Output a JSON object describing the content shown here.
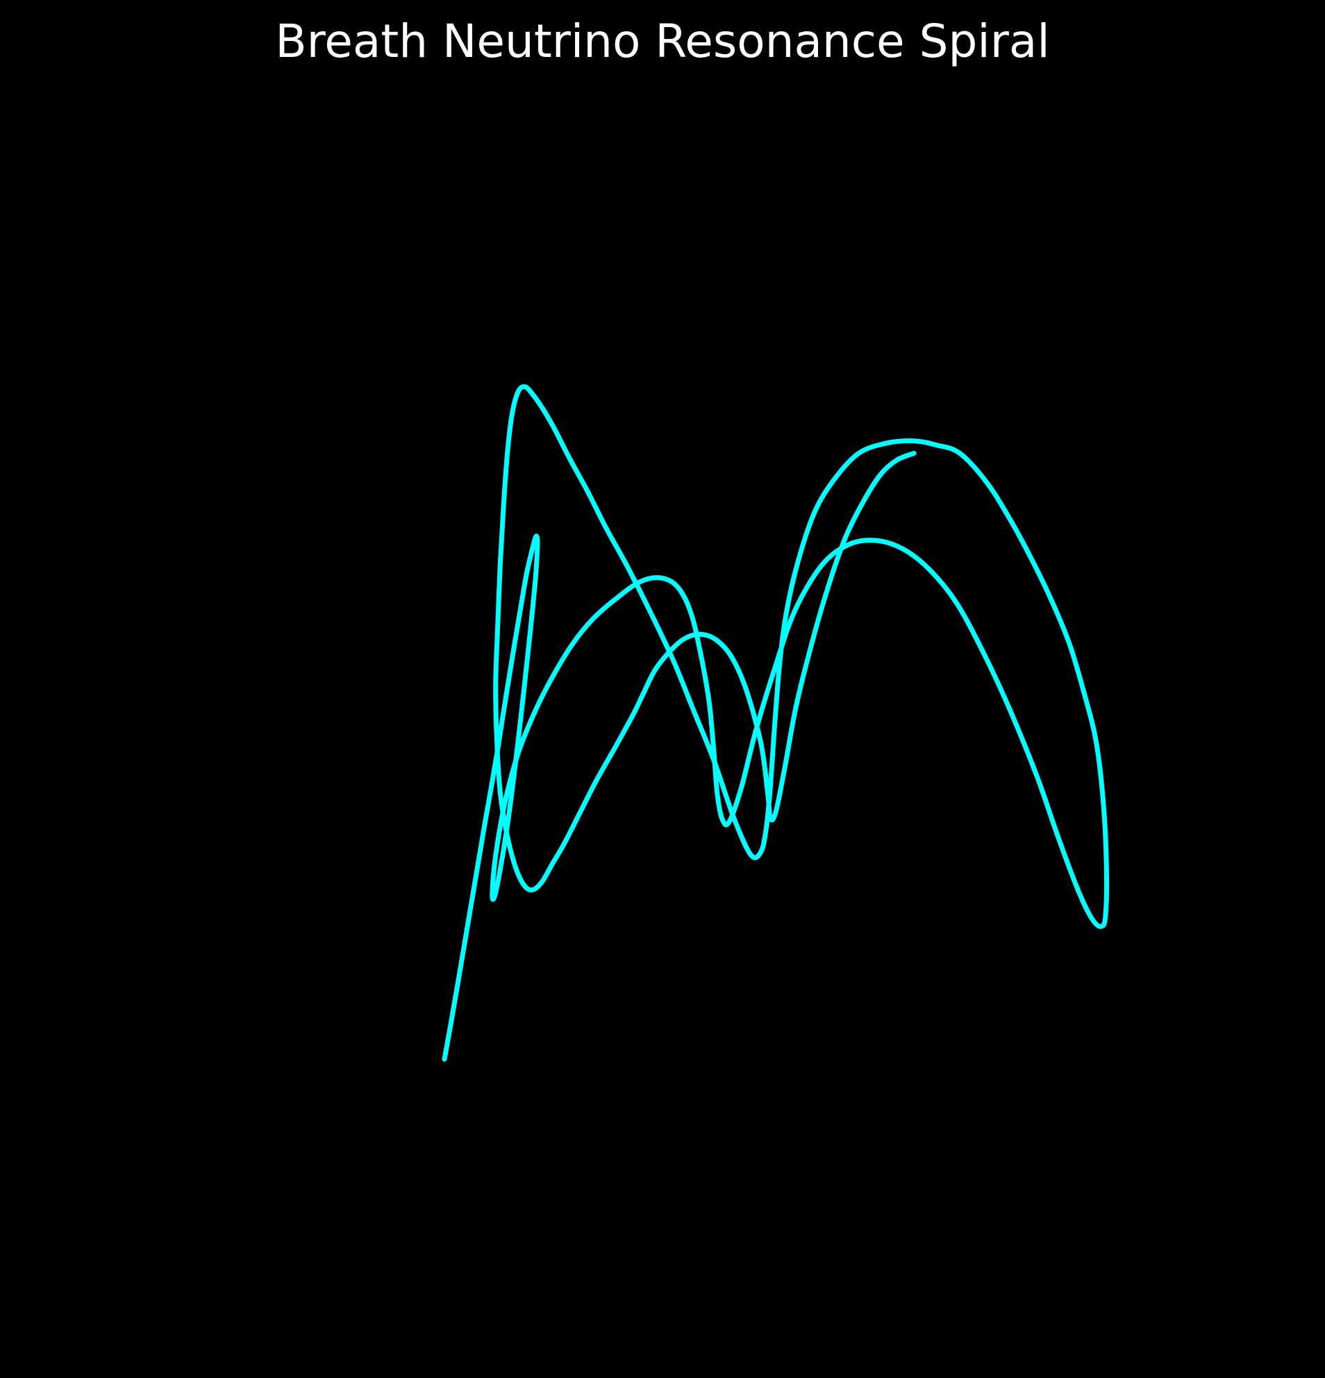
{
  "chart_data": {
    "type": "line",
    "title": "Breath Neutrino Resonance Spiral",
    "xlabel": "",
    "ylabel": "",
    "axes_visible": false,
    "grid": false,
    "background_color": "#000000",
    "series": [
      {
        "color": "#00ffff",
        "note_free_points": true,
        "x": [
          0.0,
          0.01,
          0.02,
          0.03,
          0.04,
          0.05,
          0.06,
          0.07,
          0.08,
          0.088,
          0.096,
          0.104,
          0.114,
          0.122,
          0.13,
          0.136,
          0.138,
          0.135,
          0.128,
          0.118,
          0.106,
          0.094,
          0.082,
          0.074,
          0.071,
          0.076,
          0.09,
          0.11,
          0.135,
          0.16,
          0.19,
          0.22,
          0.255,
          0.29,
          0.32,
          0.345,
          0.365,
          0.38,
          0.393,
          0.4,
          0.405,
          0.412,
          0.422,
          0.44,
          0.462,
          0.49,
          0.52,
          0.56,
          0.6,
          0.64,
          0.68,
          0.72,
          0.76,
          0.8,
          0.84,
          0.88,
          0.91,
          0.935,
          0.952,
          0.965,
          0.975,
          0.981,
          0.983,
          0.979,
          0.968,
          0.95,
          0.928,
          0.9,
          0.87,
          0.84,
          0.805,
          0.765,
          0.73,
          0.695,
          0.655,
          0.615,
          0.58,
          0.55,
          0.525,
          0.508,
          0.498,
          0.49,
          0.484,
          0.478,
          0.47,
          0.455,
          0.43,
          0.4,
          0.37,
          0.34,
          0.305,
          0.272,
          0.24,
          0.212,
          0.185,
          0.163,
          0.145,
          0.132,
          0.12,
          0.11,
          0.101,
          0.094,
          0.088,
          0.083,
          0.079,
          0.076,
          0.078,
          0.083,
          0.093,
          0.104,
          0.114,
          0.124,
          0.134,
          0.146,
          0.16,
          0.178,
          0.2,
          0.225,
          0.255,
          0.28,
          0.295,
          0.312,
          0.333,
          0.355,
          0.378,
          0.402,
          0.426,
          0.448,
          0.47,
          0.48,
          0.484,
          0.492,
          0.505,
          0.522,
          0.545,
          0.57,
          0.595,
          0.622,
          0.648,
          0.672,
          0.697
        ],
        "y": [
          0.0,
          0.045,
          0.092,
          0.14,
          0.188,
          0.236,
          0.284,
          0.33,
          0.378,
          0.42,
          0.46,
          0.5,
          0.548,
          0.585,
          0.613,
          0.63,
          0.62,
          0.578,
          0.52,
          0.445,
          0.36,
          0.285,
          0.225,
          0.195,
          0.2,
          0.245,
          0.31,
          0.37,
          0.42,
          0.46,
          0.5,
          0.53,
          0.555,
          0.575,
          0.58,
          0.57,
          0.54,
          0.49,
          0.43,
          0.37,
          0.32,
          0.29,
          0.285,
          0.325,
          0.395,
          0.47,
          0.54,
          0.595,
          0.62,
          0.625,
          0.615,
          0.59,
          0.55,
          0.49,
          0.42,
          0.34,
          0.27,
          0.215,
          0.183,
          0.165,
          0.16,
          0.17,
          0.22,
          0.3,
          0.38,
          0.44,
          0.5,
          0.555,
          0.605,
          0.65,
          0.695,
          0.73,
          0.74,
          0.745,
          0.742,
          0.73,
          0.7,
          0.66,
          0.6,
          0.54,
          0.48,
          0.4,
          0.33,
          0.28,
          0.25,
          0.246,
          0.29,
          0.36,
          0.42,
          0.48,
          0.54,
          0.593,
          0.64,
          0.685,
          0.725,
          0.76,
          0.785,
          0.8,
          0.81,
          0.805,
          0.78,
          0.735,
          0.67,
          0.6,
          0.52,
          0.45,
          0.38,
          0.32,
          0.27,
          0.235,
          0.215,
          0.205,
          0.205,
          0.215,
          0.235,
          0.26,
          0.295,
          0.335,
          0.378,
          0.415,
          0.44,
          0.468,
          0.49,
          0.506,
          0.512,
          0.506,
          0.485,
          0.445,
          0.38,
          0.32,
          0.29,
          0.298,
          0.35,
          0.425,
          0.5,
          0.57,
          0.628,
          0.672,
          0.705,
          0.722,
          0.73
        ]
      }
    ]
  },
  "style": {
    "line_color": "#00ffff",
    "title_color": "#ffffff"
  }
}
